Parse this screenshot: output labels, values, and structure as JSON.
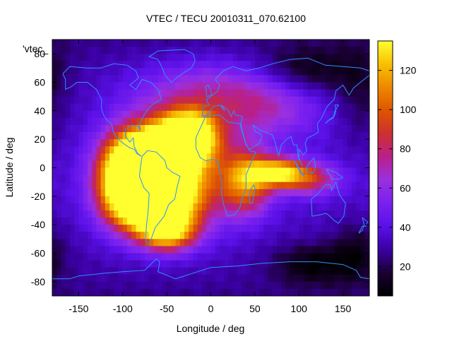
{
  "chart_data": {
    "type": "heatmap",
    "title": "VTEC / TECU 20010311_070.62100",
    "xlabel": "Longitude / deg",
    "ylabel": "Latitude / deg",
    "series_key": "'vtec_",
    "xlim": [
      -180,
      180
    ],
    "ylim": [
      -90,
      90
    ],
    "x_ticks": [
      -150,
      -100,
      -50,
      0,
      50,
      100,
      150
    ],
    "y_ticks": [
      -80,
      -60,
      -40,
      -20,
      0,
      20,
      40,
      60,
      80
    ],
    "colorbar": {
      "min": 5,
      "max": 135,
      "ticks": [
        20,
        40,
        60,
        80,
        100,
        120
      ]
    },
    "palette": [
      "#000000",
      "#1a0033",
      "#3a00a0",
      "#5a10e8",
      "#7a20f0",
      "#9a30e0",
      "#b8208a",
      "#cc3030",
      "#dd5500",
      "#ee8800",
      "#f8c000",
      "#ffff30"
    ],
    "coastline_color": "#2f8fff",
    "features": [
      {
        "lon": -70,
        "lat": 3,
        "peak": 135,
        "slon": 26,
        "slat": 16
      },
      {
        "lon": -25,
        "lat": 22,
        "peak": 118,
        "slon": 22,
        "slat": 12
      },
      {
        "lon": -65,
        "lat": -25,
        "peak": 108,
        "slon": 28,
        "slat": 12
      },
      {
        "lon": -45,
        "lat": -5,
        "peak": 96,
        "slon": 40,
        "slat": 26
      },
      {
        "lon": -100,
        "lat": -10,
        "peak": 82,
        "slon": 22,
        "slat": 20
      },
      {
        "lon": -50,
        "lat": -45,
        "peak": 84,
        "slon": 22,
        "slat": 9
      },
      {
        "lon": 75,
        "lat": -3,
        "peak": 82,
        "slon": 22,
        "slat": 7
      },
      {
        "lon": 40,
        "lat": -10,
        "peak": 70,
        "slon": 20,
        "slat": 16
      },
      {
        "lon": 110,
        "lat": -8,
        "peak": 50,
        "slon": 25,
        "slat": 8
      },
      {
        "lon": 0,
        "lat": 55,
        "peak": 30,
        "slon": 60,
        "slat": 15
      },
      {
        "lon": 60,
        "lat": 40,
        "peak": 28,
        "slon": 45,
        "slat": 15
      },
      {
        "lon": 110,
        "lat": 68,
        "peak": -22,
        "slon": 40,
        "slat": 12
      },
      {
        "lon": 115,
        "lat": -68,
        "peak": -24,
        "slon": 30,
        "slat": 10
      },
      {
        "lon": 165,
        "lat": -60,
        "peak": -20,
        "slon": 20,
        "slat": 15
      },
      {
        "lon": 170,
        "lat": 50,
        "peak": -14,
        "slon": 20,
        "slat": 25
      }
    ],
    "background": {
      "base": 36,
      "pole_drop": 10
    }
  }
}
